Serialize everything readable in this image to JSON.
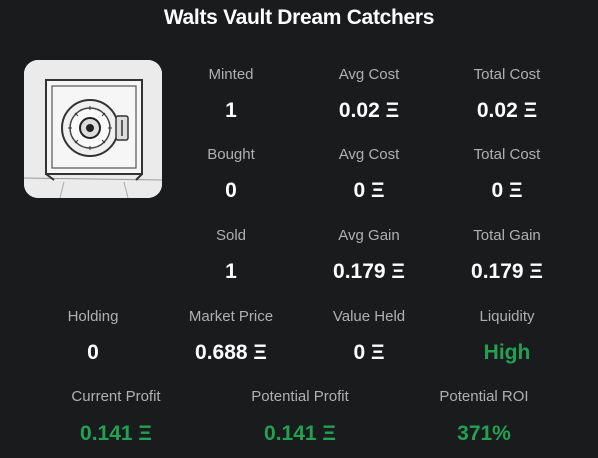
{
  "collection": {
    "title": "Walts Vault Dream Catchers",
    "image": "vault-safe-sketch-image"
  },
  "minted": {
    "count_label": "Minted",
    "count": "1",
    "avg_label": "Avg Cost",
    "avg": "0.02 Ξ",
    "total_label": "Total Cost",
    "total": "0.02 Ξ"
  },
  "bought": {
    "count_label": "Bought",
    "count": "0",
    "avg_label": "Avg Cost",
    "avg": "0 Ξ",
    "total_label": "Total Cost",
    "total": "0 Ξ"
  },
  "sold": {
    "count_label": "Sold",
    "count": "1",
    "avg_label": "Avg Gain",
    "avg": "0.179 Ξ",
    "total_label": "Total Gain",
    "total": "0.179 Ξ"
  },
  "holding": {
    "holding_label": "Holding",
    "holding": "0",
    "market_label": "Market Price",
    "market": "0.688 Ξ",
    "value_label": "Value Held",
    "value": "0 Ξ",
    "liquidity_label": "Liquidity",
    "liquidity": "High"
  },
  "profit": {
    "current_label": "Current Profit",
    "current": "0.141 Ξ",
    "potential_label": "Potential Profit",
    "potential": "0.141 Ξ",
    "roi_label": "Potential ROI",
    "roi": "371%"
  },
  "colors": {
    "background": "#1a1b1d",
    "label": "#b0b0b0",
    "value": "#ffffff",
    "positive": "#22a152"
  }
}
